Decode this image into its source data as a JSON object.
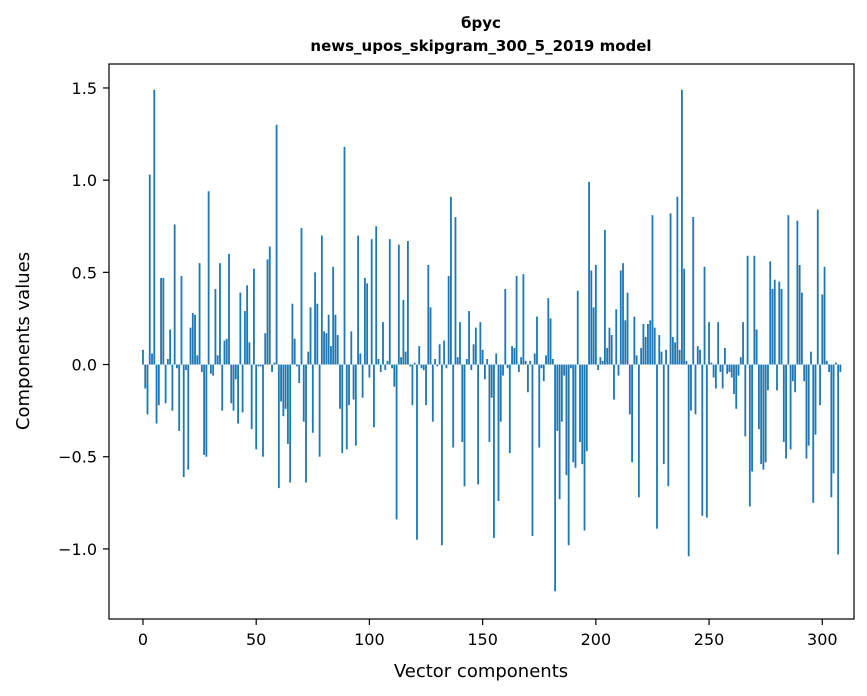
{
  "chart_data": {
    "type": "bar",
    "title": [
      "брус",
      "news_upos_skipgram_300_5_2019 model"
    ],
    "xlabel": "Vector components",
    "ylabel": "Components values",
    "xlim": [
      -15,
      314
    ],
    "ylim": [
      -1.38,
      1.63
    ],
    "xticks": [
      0,
      50,
      100,
      150,
      200,
      250,
      300
    ],
    "xtick_labels": [
      "0",
      "50",
      "100",
      "150",
      "200",
      "250",
      "300"
    ],
    "yticks": [
      -1.0,
      -0.5,
      0.0,
      0.5,
      1.0,
      1.5
    ],
    "ytick_labels": [
      "−1.0",
      "−0.5",
      "0.0",
      "0.5",
      "1.0",
      "1.5"
    ],
    "bar_color": "#1f77b4",
    "values": [
      0.08,
      -0.13,
      -0.27,
      1.03,
      0.06,
      1.49,
      -0.32,
      -0.22,
      0.47,
      0.47,
      -0.21,
      0.03,
      0.19,
      -0.25,
      0.76,
      -0.02,
      -0.36,
      0.48,
      -0.61,
      -0.03,
      -0.57,
      0.2,
      0.28,
      0.27,
      0.05,
      0.55,
      -0.04,
      -0.49,
      -0.5,
      0.94,
      -0.05,
      -0.06,
      0.41,
      0.05,
      0.55,
      -0.25,
      0.13,
      0.14,
      0.6,
      -0.21,
      -0.25,
      -0.08,
      -0.32,
      0.39,
      -0.26,
      0.29,
      0.43,
      0.12,
      -0.35,
      0.52,
      -0.46,
      -0.01,
      -0.01,
      -0.5,
      0.17,
      0.57,
      0.64,
      -0.04,
      0.01,
      1.3,
      -0.67,
      -0.2,
      -0.28,
      -0.24,
      -0.43,
      -0.64,
      0.33,
      0.14,
      -0.01,
      -0.1,
      0.74,
      -0.31,
      -0.64,
      0.07,
      0.31,
      -0.37,
      0.5,
      0.33,
      -0.5,
      0.7,
      0.18,
      0.17,
      0.27,
      0.1,
      0.53,
      0.27,
      0.16,
      -0.24,
      -0.48,
      1.18,
      -0.46,
      -0.22,
      0.18,
      -0.19,
      -0.44,
      0.7,
      0.06,
      -0.18,
      0.47,
      0.44,
      -0.07,
      0.68,
      -0.34,
      0.75,
      0.03,
      -0.04,
      0.23,
      -0.03,
      0.02,
      0.68,
      -0.02,
      -0.12,
      -0.84,
      0.65,
      0.04,
      0.35,
      0.07,
      0.67,
      -0.01,
      -0.22,
      0.01,
      -0.95,
      0.1,
      -0.02,
      -0.03,
      -0.22,
      0.54,
      0.31,
      -0.31,
      0.03,
      -0.01,
      0.11,
      -0.98,
      0.13,
      -0.02,
      0.48,
      0.91,
      -0.45,
      0.8,
      0.04,
      0.23,
      -0.42,
      -0.66,
      0.03,
      0.29,
      -0.03,
      0.11,
      0.2,
      -0.65,
      0.23,
      0.08,
      -0.08,
      0.03,
      -0.42,
      -0.18,
      -0.94,
      0.06,
      -0.74,
      -0.31,
      -0.06,
      0.41,
      -0.02,
      -0.48,
      0.1,
      0.09,
      0.48,
      -0.04,
      0.04,
      0.49,
      0.02,
      -0.15,
      0.02,
      -0.93,
      0.06,
      0.26,
      -0.45,
      -0.02,
      -0.09,
      0.05,
      0.36,
      0.25,
      0.03,
      -1.23,
      -0.36,
      -0.73,
      -0.31,
      -0.06,
      -0.6,
      -0.98,
      -0.02,
      -0.53,
      -0.56,
      0.4,
      -0.42,
      -0.54,
      -0.9,
      -0.47,
      0.99,
      0.51,
      0.31,
      0.54,
      -0.03,
      0.04,
      0.02,
      0.73,
      0.09,
      0.2,
      0.16,
      -0.19,
      0.3,
      -0.06,
      0.51,
      0.55,
      0.24,
      0.39,
      -0.27,
      -0.53,
      0.26,
      0.05,
      -0.72,
      0.09,
      0.22,
      0.15,
      0.22,
      0.24,
      0.81,
      0.2,
      -0.89,
      0.16,
      0.07,
      -0.54,
      0.08,
      -0.66,
      0.82,
      0.15,
      0.12,
      0.91,
      0.08,
      1.49,
      0.52,
      0.02,
      -1.04,
      -0.25,
      0.8,
      -0.27,
      0.1,
      0.08,
      -0.82,
      0.53,
      -0.83,
      0.23,
      0.01,
      -0.07,
      -0.13,
      0.23,
      -0.04,
      -0.13,
      0.09,
      -0.05,
      -0.04,
      -0.07,
      -0.16,
      -0.24,
      -0.06,
      0.04,
      0.23,
      -0.39,
      0.59,
      -0.77,
      -0.58,
      0.59,
      0.19,
      -0.35,
      -0.54,
      -0.57,
      -0.53,
      -0.14,
      0.56,
      0.41,
      0.46,
      -0.14,
      0.45,
      0.41,
      -0.42,
      -0.51,
      0.81,
      -0.46,
      -0.09,
      -0.15,
      0.78,
      0.54,
      0.39,
      -0.09,
      -0.51,
      -0.44,
      0.07,
      -0.75,
      -0.38,
      0.84,
      -0.22,
      0.38,
      0.53,
      0.02,
      -0.04,
      -0.72,
      -0.59,
      0.01,
      -1.03,
      -0.04
    ]
  }
}
